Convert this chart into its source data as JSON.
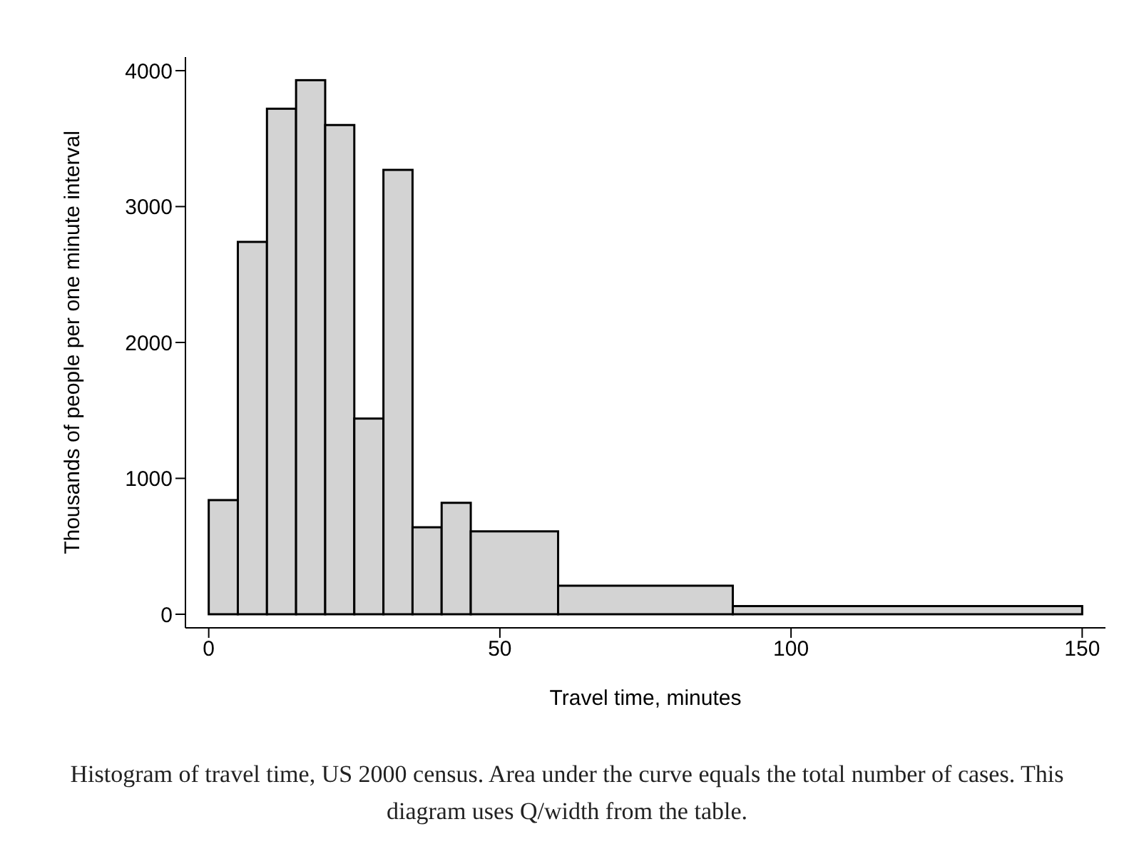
{
  "chart_data": {
    "type": "histogram",
    "xlabel": "Travel time, minutes",
    "ylabel": "Thousands of people per one minute interval",
    "bins": [
      0,
      5,
      10,
      15,
      20,
      25,
      30,
      35,
      40,
      45,
      60,
      90,
      150
    ],
    "values": [
      840,
      2740,
      3720,
      3930,
      3600,
      1440,
      3270,
      640,
      820,
      610,
      210,
      60
    ],
    "color": "#d3d3d3",
    "xlim": [
      -4,
      154
    ],
    "xticks": [
      0,
      50,
      100,
      150
    ],
    "ylim": [
      -100,
      4100
    ],
    "yticks": [
      0,
      1000,
      2000,
      3000,
      4000
    ],
    "grid": false,
    "legend": false,
    "annotations": [
      "Histogram of travel time, US 2000 census. Area under the curve equals the total number of cases. This diagram uses Q/width from the table."
    ]
  }
}
